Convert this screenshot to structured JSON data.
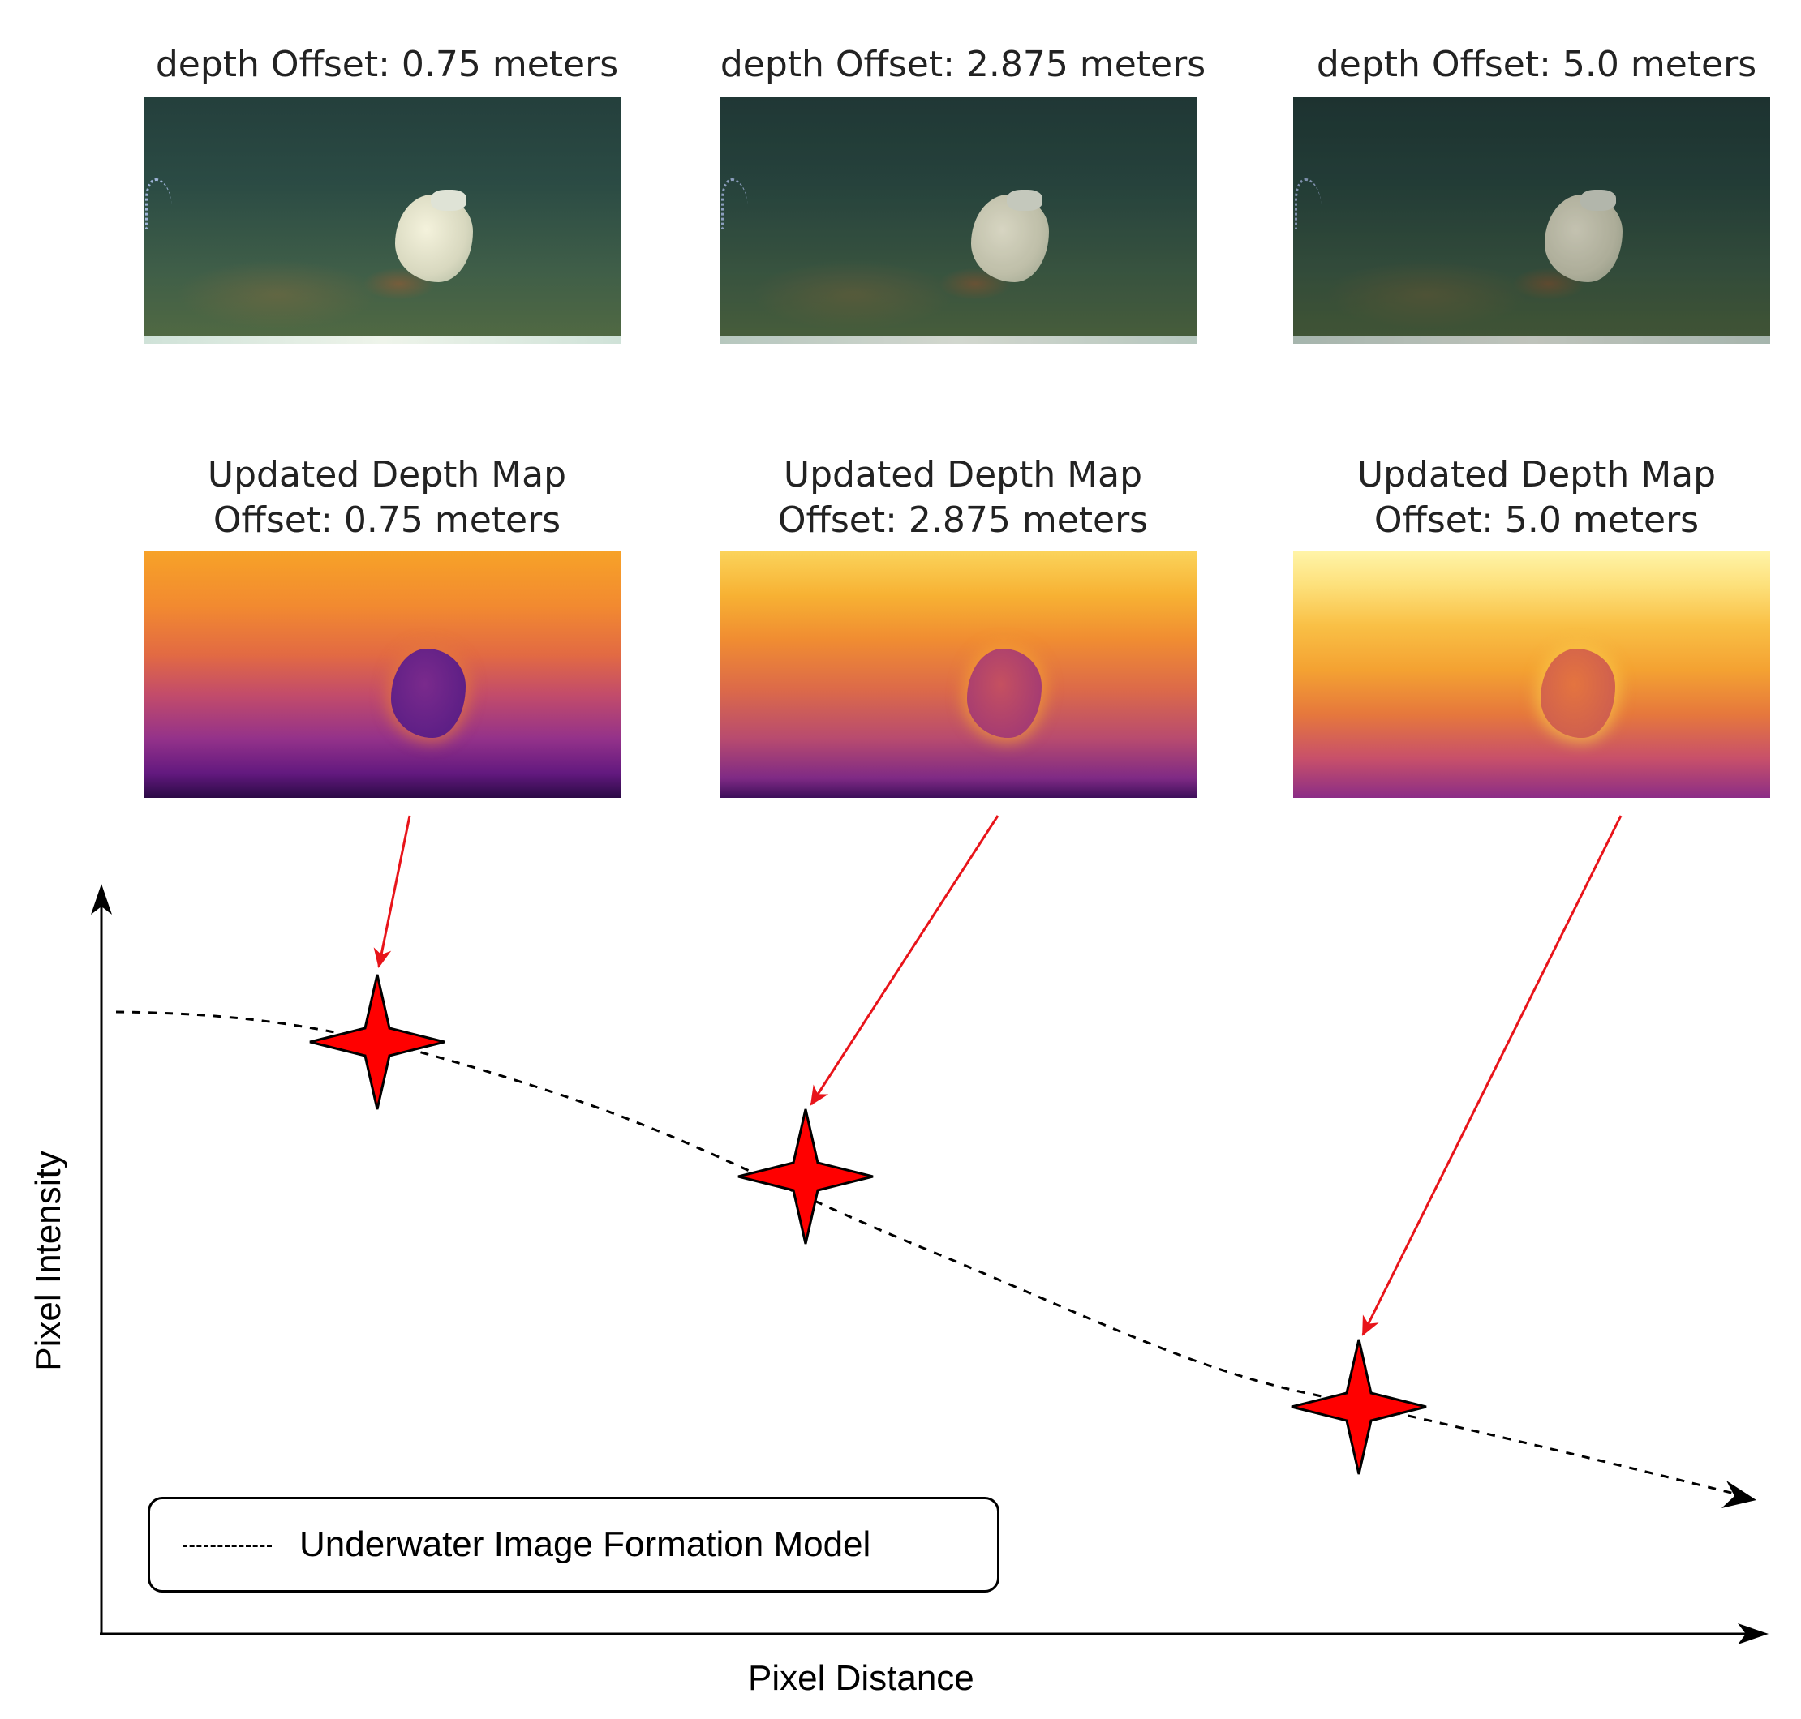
{
  "photo_titles": [
    "depth Offset: 0.75 meters",
    "depth Offset: 2.875 meters",
    "depth Offset: 5.0 meters"
  ],
  "depth_map_titles": [
    "Updated Depth Map\nOffset: 0.75 meters",
    "Updated Depth Map\nOffset: 2.875 meters",
    "Updated Depth Map\nOffset: 5.0 meters"
  ],
  "axes": {
    "y_label": "Pixel Intensity",
    "x_label": "Pixel Distance"
  },
  "legend": {
    "label": "Underwater Image Formation Model"
  },
  "colors": {
    "arrow": "#e8141a",
    "star_fill": "#ff0000",
    "star_stroke": "#000000",
    "curve": "#000000"
  }
}
